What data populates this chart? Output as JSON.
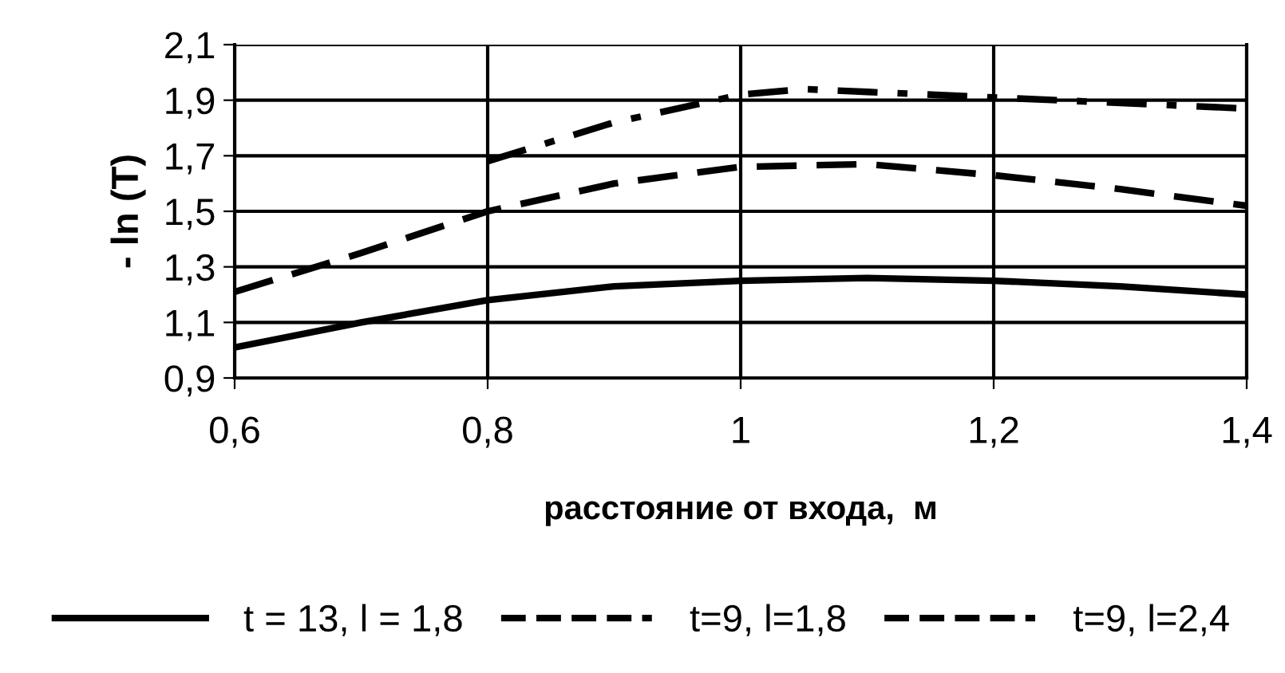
{
  "chart_data": {
    "type": "line",
    "xlabel": "расстояние от входа,  м",
    "ylabel": "- ln (T)",
    "xlim": [
      0.6,
      1.4
    ],
    "ylim": [
      0.9,
      2.1
    ],
    "xticks": [
      {
        "value": 0.6,
        "label": "0,6"
      },
      {
        "value": 0.8,
        "label": "0,8"
      },
      1,
      {
        "value": 1.2,
        "label": "1,2"
      },
      {
        "value": 1.4,
        "label": "1,4"
      }
    ],
    "yticks": [
      {
        "value": 0.9,
        "label": "0,9"
      },
      {
        "value": 1.1,
        "label": "1,1"
      },
      {
        "value": 1.3,
        "label": "1,3"
      },
      {
        "value": 1.5,
        "label": "1,5"
      },
      {
        "value": 1.7,
        "label": "1,7"
      },
      {
        "value": 1.9,
        "label": "1,9"
      },
      {
        "value": 2.1,
        "label": "2,1"
      }
    ],
    "grid": true,
    "legend": "bottom",
    "marker": "none",
    "series": [
      {
        "name": "t = 13, l = 1,8",
        "color": "#000000",
        "line_style": "solid",
        "x": [
          0.6,
          0.7,
          0.8,
          0.9,
          1.0,
          1.1,
          1.2,
          1.3,
          1.4
        ],
        "values": [
          1.01,
          1.1,
          1.18,
          1.23,
          1.25,
          1.26,
          1.25,
          1.23,
          1.2
        ]
      },
      {
        "name": "t=9, l=1,8",
        "color": "#000000",
        "line_style": "dashed",
        "x": [
          0.6,
          0.7,
          0.8,
          0.9,
          1.0,
          1.1,
          1.2,
          1.3,
          1.4
        ],
        "values": [
          1.21,
          1.35,
          1.5,
          1.6,
          1.66,
          1.67,
          1.63,
          1.58,
          1.52
        ]
      },
      {
        "name": "t=9, l=2,4",
        "color": "#000000",
        "line_style": "dashdot",
        "x": [
          0.8,
          0.9,
          1.0,
          1.05,
          1.1,
          1.2,
          1.3,
          1.4
        ],
        "values": [
          1.68,
          1.82,
          1.92,
          1.94,
          1.93,
          1.91,
          1.89,
          1.87
        ]
      }
    ]
  }
}
